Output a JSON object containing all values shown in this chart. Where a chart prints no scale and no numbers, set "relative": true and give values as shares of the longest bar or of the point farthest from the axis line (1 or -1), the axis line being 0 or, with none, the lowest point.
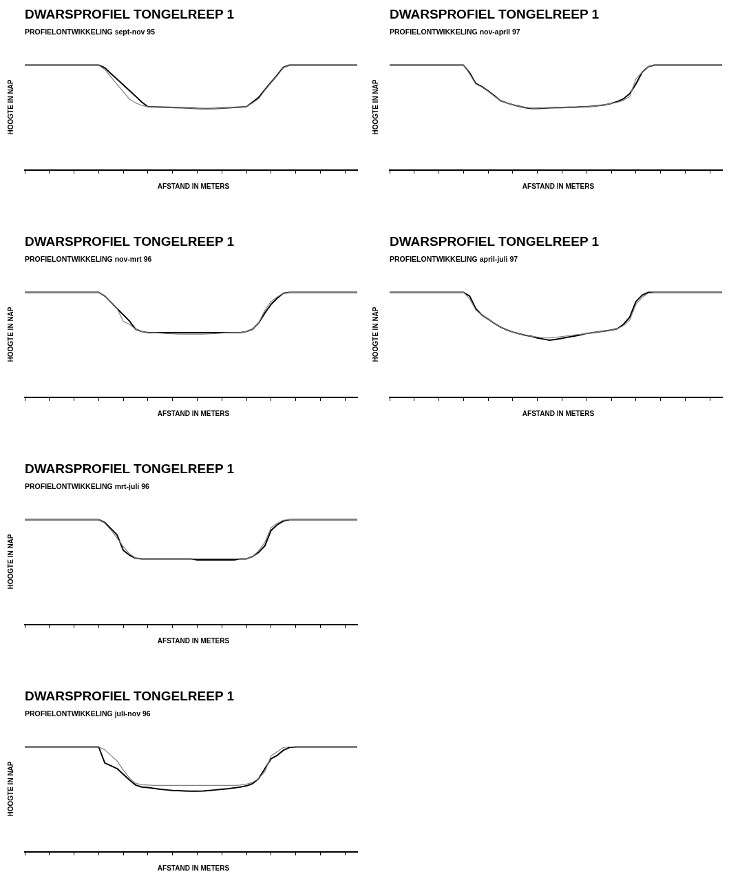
{
  "chart_data": [
    {
      "type": "line",
      "title": "DWARSPROFIEL TONGELREEP 1",
      "subtitle": "PROFIELONTWIKKELING  sept-nov 95",
      "xlabel": "AFSTAND IN METERS",
      "ylabel": "HOOGTE IN NAP",
      "relative": true,
      "tick_labels": false,
      "grid": false,
      "legend": false,
      "categories": [
        null,
        null,
        null,
        null,
        null,
        null,
        null,
        null,
        null,
        null,
        null,
        null,
        null,
        null,
        null,
        null,
        null,
        null,
        null,
        null,
        null,
        null,
        null,
        null,
        null,
        null,
        null,
        null,
        null,
        null,
        null,
        null,
        null,
        null,
        null,
        null,
        null,
        null,
        null,
        null,
        null,
        null,
        null,
        null,
        null,
        null,
        null,
        null,
        null,
        null,
        null,
        null,
        null,
        null,
        null
      ],
      "series": [
        {
          "color": "#000000",
          "values": [
            1,
            1,
            1,
            1,
            1,
            1,
            1,
            1,
            1,
            1,
            1,
            1,
            1,
            0.974,
            0.918,
            0.865,
            0.812,
            0.757,
            0.704,
            0.648,
            0.603,
            0.601,
            0.6,
            0.598,
            0.596,
            0.595,
            0.593,
            0.59,
            0.587,
            0.585,
            0.585,
            0.587,
            0.59,
            0.593,
            0.596,
            0.6,
            0.603,
            0.648,
            0.693,
            0.767,
            0.836,
            0.905,
            0.979,
            1,
            1,
            1,
            1,
            1,
            1,
            1,
            1,
            1,
            1,
            1,
            1
          ]
        },
        {
          "color": "#808080",
          "values": [
            1,
            1,
            1,
            1,
            1,
            1,
            1,
            1,
            1,
            1,
            1,
            1,
            1,
            0.958,
            0.886,
            0.815,
            0.746,
            0.675,
            0.64,
            0.616,
            0.603,
            0.601,
            0.6,
            0.598,
            0.596,
            0.595,
            0.593,
            0.59,
            0.587,
            0.585,
            0.585,
            0.587,
            0.59,
            0.593,
            0.596,
            0.6,
            0.603,
            0.64,
            0.68,
            0.76,
            0.83,
            0.9,
            0.975,
            1,
            1,
            1,
            1,
            1,
            1,
            1,
            1,
            1,
            1,
            1,
            1
          ]
        }
      ]
    },
    {
      "type": "line",
      "title": "DWARSPROFIEL TONGELREEP 1",
      "subtitle": "PROFIELONTWIKKELING  nov-april 97",
      "xlabel": "AFSTAND IN METERS",
      "ylabel": "HOOGTE IN NAP",
      "relative": true,
      "tick_labels": false,
      "grid": false,
      "legend": false,
      "categories": [
        null,
        null,
        null,
        null,
        null,
        null,
        null,
        null,
        null,
        null,
        null,
        null,
        null,
        null,
        null,
        null,
        null,
        null,
        null,
        null,
        null,
        null,
        null,
        null,
        null,
        null,
        null,
        null,
        null,
        null,
        null,
        null,
        null,
        null,
        null,
        null,
        null,
        null,
        null,
        null,
        null,
        null,
        null,
        null,
        null,
        null,
        null,
        null,
        null,
        null,
        null,
        null,
        null,
        null,
        null
      ],
      "series": [
        {
          "color": "#000000",
          "values": [
            1,
            1,
            1,
            1,
            1,
            1,
            1,
            1,
            1,
            1,
            1,
            1,
            1,
            0.926,
            0.825,
            0.794,
            0.754,
            0.709,
            0.661,
            0.64,
            0.622,
            0.608,
            0.595,
            0.587,
            0.587,
            0.59,
            0.593,
            0.595,
            0.595,
            0.598,
            0.598,
            0.601,
            0.603,
            0.608,
            0.614,
            0.622,
            0.635,
            0.653,
            0.68,
            0.728,
            0.82,
            0.931,
            0.984,
            1,
            1,
            1,
            1,
            1,
            1,
            1,
            1,
            1,
            1,
            1,
            1
          ]
        },
        {
          "color": "#808080",
          "values": [
            1,
            1,
            1,
            1,
            1,
            1,
            1,
            1,
            1,
            1,
            1,
            1,
            1,
            0.915,
            0.82,
            0.79,
            0.75,
            0.705,
            0.66,
            0.64,
            0.622,
            0.608,
            0.597,
            0.59,
            0.59,
            0.592,
            0.594,
            0.596,
            0.596,
            0.598,
            0.598,
            0.601,
            0.603,
            0.608,
            0.614,
            0.622,
            0.635,
            0.645,
            0.665,
            0.7,
            0.87,
            0.93,
            0.984,
            1,
            1,
            1,
            1,
            1,
            1,
            1,
            1,
            1,
            1,
            1,
            1
          ]
        }
      ]
    },
    {
      "type": "line",
      "title": "DWARSPROFIEL TONGELREEP 1",
      "subtitle": "PROFIELONTWIKKELING  nov-mrt 96",
      "xlabel": "AFSTAND IN METERS",
      "ylabel": "HOOGTE IN NAP",
      "relative": true,
      "tick_labels": false,
      "grid": false,
      "legend": false,
      "categories": [
        null,
        null,
        null,
        null,
        null,
        null,
        null,
        null,
        null,
        null,
        null,
        null,
        null,
        null,
        null,
        null,
        null,
        null,
        null,
        null,
        null,
        null,
        null,
        null,
        null,
        null,
        null,
        null,
        null,
        null,
        null,
        null,
        null,
        null,
        null,
        null,
        null,
        null,
        null,
        null,
        null,
        null,
        null,
        null,
        null,
        null,
        null,
        null,
        null,
        null,
        null,
        null,
        null,
        null,
        null
      ],
      "series": [
        {
          "color": "#000000",
          "values": [
            1,
            1,
            1,
            1,
            1,
            1,
            1,
            1,
            1,
            1,
            1,
            1,
            1,
            0.965,
            0.906,
            0.845,
            0.786,
            0.727,
            0.649,
            0.627,
            0.617,
            0.617,
            0.617,
            0.617,
            0.617,
            0.617,
            0.617,
            0.617,
            0.617,
            0.617,
            0.617,
            0.617,
            0.617,
            0.617,
            0.617,
            0.617,
            0.627,
            0.649,
            0.71,
            0.804,
            0.885,
            0.944,
            0.992,
            1,
            1,
            1,
            1,
            1,
            1,
            1,
            1,
            1,
            1,
            1,
            1
          ]
        },
        {
          "color": "#808080",
          "values": [
            1,
            1,
            1,
            1,
            1,
            1,
            1,
            1,
            1,
            1,
            1,
            1,
            1,
            0.965,
            0.906,
            0.845,
            0.724,
            0.697,
            0.649,
            0.627,
            0.617,
            0.615,
            0.612,
            0.608,
            0.605,
            0.603,
            0.603,
            0.603,
            0.603,
            0.603,
            0.605,
            0.608,
            0.612,
            0.615,
            0.617,
            0.617,
            0.627,
            0.649,
            0.71,
            0.831,
            0.912,
            0.957,
            0.992,
            1,
            1,
            1,
            1,
            1,
            1,
            1,
            1,
            1,
            1,
            1,
            1
          ]
        }
      ]
    },
    {
      "type": "line",
      "title": "DWARSPROFIEL TONGELREEP 1",
      "subtitle": "PROFIELONTWIKKELING  april-juli 97",
      "xlabel": "AFSTAND IN METERS",
      "ylabel": "HOOGTE IN NAP",
      "relative": true,
      "tick_labels": false,
      "grid": false,
      "legend": false,
      "categories": [
        null,
        null,
        null,
        null,
        null,
        null,
        null,
        null,
        null,
        null,
        null,
        null,
        null,
        null,
        null,
        null,
        null,
        null,
        null,
        null,
        null,
        null,
        null,
        null,
        null,
        null,
        null,
        null,
        null,
        null,
        null,
        null,
        null,
        null,
        null,
        null,
        null,
        null,
        null,
        null,
        null,
        null,
        null,
        null,
        null,
        null,
        null,
        null,
        null,
        null,
        null,
        null,
        null,
        null,
        null
      ],
      "series": [
        {
          "color": "#808080",
          "values": [
            1,
            1,
            1,
            1,
            1,
            1,
            1,
            1,
            1,
            1,
            1,
            1,
            1,
            0.938,
            0.831,
            0.783,
            0.745,
            0.705,
            0.67,
            0.643,
            0.622,
            0.606,
            0.592,
            0.582,
            0.574,
            0.568,
            0.566,
            0.571,
            0.579,
            0.587,
            0.595,
            0.601,
            0.609,
            0.617,
            0.625,
            0.633,
            0.641,
            0.654,
            0.684,
            0.737,
            0.885,
            0.952,
            0.992,
            1,
            1,
            1,
            1,
            1,
            1,
            1,
            1,
            1,
            1,
            1,
            1
          ]
        },
        {
          "color": "#000000",
          "values": [
            1,
            1,
            1,
            1,
            1,
            1,
            1,
            1,
            1,
            1,
            1,
            1,
            1,
            0.965,
            0.845,
            0.783,
            0.745,
            0.705,
            0.67,
            0.643,
            0.622,
            0.606,
            0.592,
            0.582,
            0.566,
            0.555,
            0.544,
            0.552,
            0.563,
            0.574,
            0.584,
            0.595,
            0.609,
            0.617,
            0.625,
            0.633,
            0.641,
            0.654,
            0.697,
            0.764,
            0.912,
            0.973,
            1,
            1,
            1,
            1,
            1,
            1,
            1,
            1,
            1,
            1,
            1,
            1,
            1
          ]
        }
      ]
    },
    {
      "type": "line",
      "title": "DWARSPROFIEL TONGELREEP 1",
      "subtitle": "PROFIELONTWIKKELING  mrt-juli 96",
      "xlabel": "AFSTAND IN METERS",
      "ylabel": "HOOGTE IN NAP",
      "relative": true,
      "tick_labels": false,
      "grid": false,
      "legend": false,
      "categories": [
        null,
        null,
        null,
        null,
        null,
        null,
        null,
        null,
        null,
        null,
        null,
        null,
        null,
        null,
        null,
        null,
        null,
        null,
        null,
        null,
        null,
        null,
        null,
        null,
        null,
        null,
        null,
        null,
        null,
        null,
        null,
        null,
        null,
        null,
        null,
        null,
        null,
        null,
        null,
        null,
        null,
        null,
        null,
        null,
        null,
        null,
        null,
        null,
        null,
        null,
        null,
        null,
        null,
        null,
        null
      ],
      "series": [
        {
          "color": "#000000",
          "values": [
            1,
            1,
            1,
            1,
            1,
            1,
            1,
            1,
            1,
            1,
            1,
            1,
            1,
            0.973,
            0.914,
            0.854,
            0.708,
            0.662,
            0.632,
            0.627,
            0.627,
            0.627,
            0.627,
            0.627,
            0.627,
            0.627,
            0.627,
            0.627,
            0.616,
            0.616,
            0.616,
            0.616,
            0.616,
            0.616,
            0.616,
            0.627,
            0.627,
            0.649,
            0.689,
            0.751,
            0.897,
            0.951,
            0.986,
            1,
            1,
            1,
            1,
            1,
            1,
            1,
            1,
            1,
            1,
            1,
            1
          ]
        },
        {
          "color": "#808080",
          "values": [
            1,
            1,
            1,
            1,
            1,
            1,
            1,
            1,
            1,
            1,
            1,
            1,
            1,
            0.965,
            0.9,
            0.824,
            0.743,
            0.676,
            0.635,
            0.627,
            0.627,
            0.627,
            0.627,
            0.627,
            0.627,
            0.627,
            0.627,
            0.627,
            0.627,
            0.627,
            0.627,
            0.627,
            0.627,
            0.627,
            0.627,
            0.627,
            0.627,
            0.649,
            0.703,
            0.784,
            0.924,
            0.965,
            0.995,
            1,
            1,
            1,
            1,
            1,
            1,
            1,
            1,
            1,
            1,
            1,
            1
          ]
        }
      ]
    },
    {
      "type": "line",
      "title": "DWARSPROFIEL TONGELREEP 1",
      "subtitle": "PROFIELONTWIKKELING  juli-nov 96",
      "xlabel": "AFSTAND IN METERS",
      "ylabel": "HOOGTE IN NAP",
      "relative": true,
      "tick_labels": false,
      "grid": false,
      "legend": false,
      "categories": [
        null,
        null,
        null,
        null,
        null,
        null,
        null,
        null,
        null,
        null,
        null,
        null,
        null,
        null,
        null,
        null,
        null,
        null,
        null,
        null,
        null,
        null,
        null,
        null,
        null,
        null,
        null,
        null,
        null,
        null,
        null,
        null,
        null,
        null,
        null,
        null,
        null,
        null,
        null,
        null,
        null,
        null,
        null,
        null,
        null,
        null,
        null,
        null,
        null,
        null,
        null,
        null,
        null,
        null,
        null
      ],
      "series": [
        {
          "color": "#808080",
          "values": [
            1,
            1,
            1,
            1,
            1,
            1,
            1,
            1,
            1,
            1,
            1,
            1,
            1,
            0.973,
            0.919,
            0.866,
            0.78,
            0.704,
            0.653,
            0.64,
            0.637,
            0.634,
            0.634,
            0.634,
            0.634,
            0.634,
            0.634,
            0.634,
            0.634,
            0.634,
            0.634,
            0.634,
            0.634,
            0.634,
            0.634,
            0.637,
            0.645,
            0.664,
            0.699,
            0.766,
            0.914,
            0.954,
            0.995,
            1,
            1,
            1,
            1,
            1,
            1,
            1,
            1,
            1,
            1,
            1,
            1
          ]
        },
        {
          "color": "#000000",
          "values": [
            1,
            1,
            1,
            1,
            1,
            1,
            1,
            1,
            1,
            1,
            1,
            1,
            1,
            0.847,
            0.82,
            0.793,
            0.739,
            0.685,
            0.637,
            0.618,
            0.613,
            0.605,
            0.597,
            0.591,
            0.586,
            0.583,
            0.581,
            0.578,
            0.578,
            0.581,
            0.586,
            0.591,
            0.597,
            0.602,
            0.61,
            0.618,
            0.629,
            0.651,
            0.699,
            0.793,
            0.887,
            0.919,
            0.968,
            0.995,
            1,
            1,
            1,
            1,
            1,
            1,
            1,
            1,
            1,
            1,
            1
          ]
        }
      ]
    }
  ]
}
